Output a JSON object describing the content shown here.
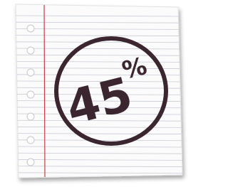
{
  "badge": {
    "number": "45",
    "unit": "%"
  }
}
